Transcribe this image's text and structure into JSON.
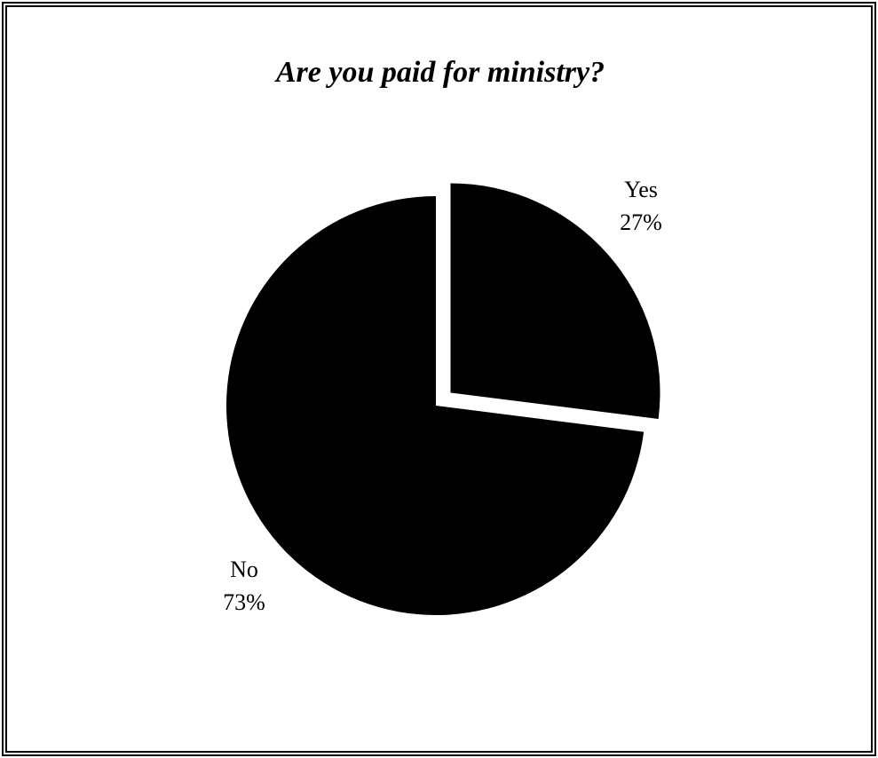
{
  "chart_data": {
    "type": "pie",
    "title": "Are you paid for ministry?",
    "slices": [
      {
        "label": "Yes",
        "value": 27,
        "value_label": "27%",
        "exploded": true
      },
      {
        "label": "No",
        "value": 73,
        "value_label": "73%",
        "exploded": false
      }
    ],
    "start_angle_deg": 0,
    "direction": "clockwise",
    "fill_color": "#000000",
    "background_color": "#ffffff",
    "legend": "none"
  }
}
